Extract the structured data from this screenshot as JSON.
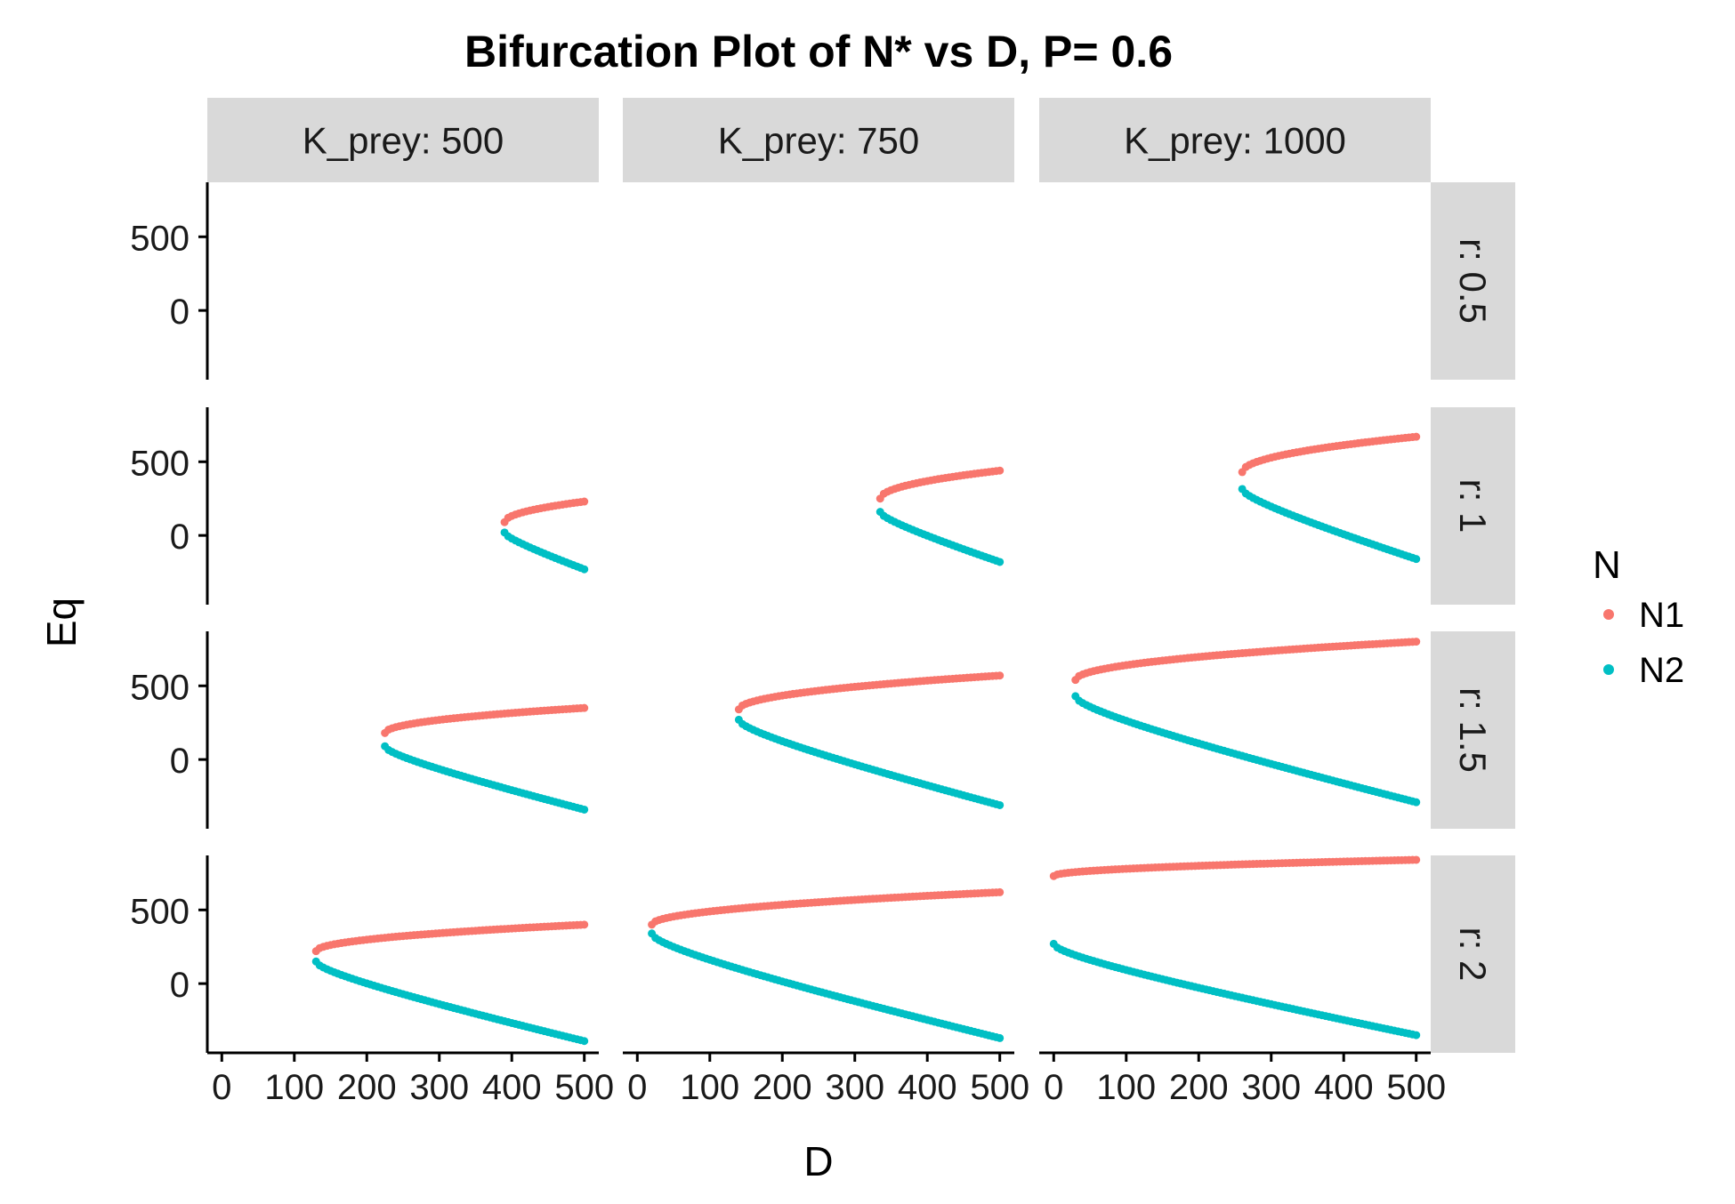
{
  "chart": {
    "title": "Bifurcation Plot of N* vs D, P= 0.6",
    "xlabel": "D",
    "ylabel": "Eq",
    "legend_title": "N"
  },
  "chart_data": {
    "type": "scatter",
    "title": "Bifurcation Plot of N* vs D, P= 0.6",
    "xlabel": "D",
    "ylabel": "Eq",
    "xlim": [
      -20,
      520
    ],
    "ylim": [
      -470,
      870
    ],
    "x_ticks": [
      0,
      100,
      200,
      300,
      400,
      500
    ],
    "x_tick_labels": [
      "0",
      "100",
      "200",
      "300",
      "400",
      "500"
    ],
    "y_ticks": [
      0,
      500
    ],
    "y_tick_labels": [
      "0",
      "500"
    ],
    "facet_columns": [
      "K_prey: 500",
      "K_prey: 750",
      "K_prey: 1000"
    ],
    "facet_rows": [
      "r: 0.5",
      "r: 1",
      "r: 1.5",
      "r: 2"
    ],
    "legend": {
      "title": "N",
      "position": "right",
      "entries": [
        "N1",
        "N2"
      ]
    },
    "colors": {
      "N1": "#F8766D",
      "N2": "#00BFC4",
      "strip": "#D9D9D9",
      "axis": "#000000"
    },
    "grid": false,
    "panels": [
      {
        "row": 0,
        "col": 0,
        "empty": true
      },
      {
        "row": 0,
        "col": 1,
        "empty": true
      },
      {
        "row": 0,
        "col": 2,
        "empty": true
      },
      {
        "row": 1,
        "col": 0,
        "d_start": 390,
        "n1_start": 90,
        "n1_end": 230,
        "n2_start": 20,
        "n2_end": -230
      },
      {
        "row": 1,
        "col": 1,
        "d_start": 335,
        "n1_start": 250,
        "n1_end": 440,
        "n2_start": 160,
        "n2_end": -180
      },
      {
        "row": 1,
        "col": 2,
        "d_start": 260,
        "n1_start": 430,
        "n1_end": 670,
        "n2_start": 315,
        "n2_end": -160
      },
      {
        "row": 2,
        "col": 0,
        "d_start": 225,
        "n1_start": 180,
        "n1_end": 350,
        "n2_start": 90,
        "n2_end": -340
      },
      {
        "row": 2,
        "col": 1,
        "d_start": 140,
        "n1_start": 340,
        "n1_end": 570,
        "n2_start": 270,
        "n2_end": -310
      },
      {
        "row": 2,
        "col": 2,
        "d_start": 30,
        "n1_start": 540,
        "n1_end": 800,
        "n2_start": 430,
        "n2_end": -290
      },
      {
        "row": 3,
        "col": 0,
        "d_start": 130,
        "n1_start": 220,
        "n1_end": 400,
        "n2_start": 150,
        "n2_end": -390
      },
      {
        "row": 3,
        "col": 1,
        "d_start": 20,
        "n1_start": 400,
        "n1_end": 620,
        "n2_start": 340,
        "n2_end": -370
      },
      {
        "row": 3,
        "col": 2,
        "d_start": 0,
        "n1_start": 730,
        "n1_end": 840,
        "n2_start": 270,
        "n2_end": -350
      }
    ]
  }
}
